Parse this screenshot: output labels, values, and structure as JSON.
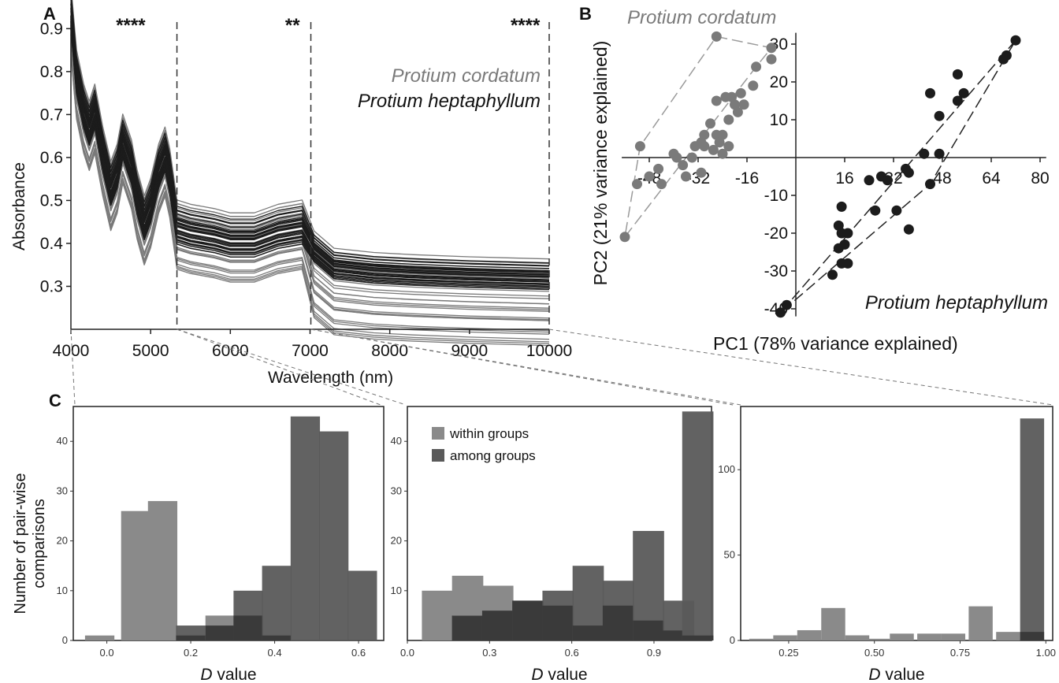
{
  "colors": {
    "cordatum": "#7a7a7a",
    "heptaphyllum": "#1c1c1c",
    "within": "#8a8a8a",
    "among": "#5a5a5a",
    "overlap": "#3a3a3a",
    "axis": "#222222"
  },
  "panel_labels": {
    "a": "A",
    "b": "B",
    "c": "C"
  },
  "chart_data": [
    {
      "id": "A",
      "type": "line",
      "xlabel": "Wavelength (nm)",
      "ylabel": "Absorbance",
      "xlim": [
        4000,
        10000
      ],
      "ylim": [
        0.2,
        0.93
      ],
      "xticks": [
        4000,
        5000,
        6000,
        7000,
        8000,
        9000,
        10000
      ],
      "yticks": [
        0.3,
        0.4,
        0.5,
        0.6,
        0.7,
        0.8,
        0.9
      ],
      "legend": [
        "Protium cordatum",
        "Protium heptaphyllum"
      ],
      "dividers": [
        5330,
        7010,
        10000
      ],
      "significance": [
        {
          "x": 4750,
          "text": "****"
        },
        {
          "x": 6780,
          "text": "**"
        },
        {
          "x": 9700,
          "text": "****"
        }
      ],
      "profile": [
        [
          4000,
          0.93
        ],
        [
          4070,
          0.78
        ],
        [
          4160,
          0.7
        ],
        [
          4230,
          0.66
        ],
        [
          4300,
          0.7
        ],
        [
          4400,
          0.6
        ],
        [
          4500,
          0.52
        ],
        [
          4580,
          0.56
        ],
        [
          4650,
          0.63
        ],
        [
          4760,
          0.57
        ],
        [
          4830,
          0.5
        ],
        [
          4920,
          0.44
        ],
        [
          5000,
          0.48
        ],
        [
          5100,
          0.56
        ],
        [
          5180,
          0.6
        ],
        [
          5240,
          0.55
        ],
        [
          5330,
          0.43
        ],
        [
          5500,
          0.42
        ],
        [
          5800,
          0.41
        ],
        [
          6000,
          0.4
        ],
        [
          6300,
          0.4
        ],
        [
          6600,
          0.42
        ],
        [
          6900,
          0.43
        ],
        [
          7050,
          0.38
        ],
        [
          7300,
          0.34
        ],
        [
          7800,
          0.33
        ],
        [
          8300,
          0.325
        ],
        [
          9000,
          0.32
        ],
        [
          10000,
          0.315
        ]
      ],
      "series": [
        {
          "name": "Protium cordatum",
          "count": 30,
          "offset_range": [
            -0.09,
            0.07
          ]
        },
        {
          "name": "Protium heptaphyllum",
          "count": 32,
          "offset_range": [
            -0.03,
            0.05
          ]
        }
      ]
    },
    {
      "id": "B",
      "type": "scatter",
      "xlabel": "PC1 (78% variance explained)",
      "ylabel": "PC2 (21% variance explained)",
      "xlim": [
        -57,
        82
      ],
      "ylim": [
        -42,
        33
      ],
      "xticks": [
        -48,
        -32,
        -16,
        16,
        32,
        48,
        64,
        80
      ],
      "yticks": [
        -40,
        -30,
        -20,
        -10,
        10,
        20,
        30
      ],
      "groups": [
        {
          "name": "Protium cordatum",
          "points": [
            [
              -26,
              32
            ],
            [
              -8,
              29
            ],
            [
              -13,
              24
            ],
            [
              -8,
              26
            ],
            [
              -14,
              19
            ],
            [
              -18,
              17
            ],
            [
              -21,
              16
            ],
            [
              -23,
              16
            ],
            [
              -20,
              14
            ],
            [
              -26,
              15
            ],
            [
              -17,
              14
            ],
            [
              -19,
              12
            ],
            [
              -22,
              10
            ],
            [
              -28,
              9
            ],
            [
              -30,
              6
            ],
            [
              -26,
              6
            ],
            [
              -24,
              6
            ],
            [
              -31,
              4
            ],
            [
              -30,
              3
            ],
            [
              -25,
              4
            ],
            [
              -27,
              2
            ],
            [
              -22,
              3
            ],
            [
              -33,
              3
            ],
            [
              -40,
              1
            ],
            [
              -39,
              0
            ],
            [
              -34,
              0
            ],
            [
              -37,
              -2
            ],
            [
              -45,
              -3
            ],
            [
              -31,
              -4
            ],
            [
              -48,
              -5
            ],
            [
              -36,
              -5
            ],
            [
              -44,
              -7
            ],
            [
              -52,
              -7
            ],
            [
              -51,
              3
            ],
            [
              -56,
              -21
            ],
            [
              -24,
              1
            ]
          ],
          "hull": [
            [
              -26,
              32
            ],
            [
              -8,
              29
            ],
            [
              -13,
              24
            ],
            [
              -56,
              -21
            ],
            [
              -51,
              3
            ]
          ]
        },
        {
          "name": "Protium heptaphyllum",
          "points": [
            [
              72,
              31
            ],
            [
              69,
              27
            ],
            [
              68,
              26
            ],
            [
              53,
              22
            ],
            [
              55,
              17
            ],
            [
              44,
              17
            ],
            [
              53,
              15
            ],
            [
              47,
              11
            ],
            [
              42,
              1
            ],
            [
              47,
              1
            ],
            [
              36,
              -3
            ],
            [
              37,
              -4
            ],
            [
              28,
              -5
            ],
            [
              30,
              -6
            ],
            [
              24,
              -6
            ],
            [
              26,
              -14
            ],
            [
              33,
              -14
            ],
            [
              15,
              -13
            ],
            [
              37,
              -19
            ],
            [
              14,
              -18
            ],
            [
              15,
              -20
            ],
            [
              17,
              -20
            ],
            [
              16,
              -23
            ],
            [
              14,
              -24
            ],
            [
              17,
              -28
            ],
            [
              15,
              -28
            ],
            [
              12,
              -31
            ],
            [
              44,
              -7
            ],
            [
              -3,
              -39
            ],
            [
              -5,
              -41
            ]
          ],
          "hull": [
            [
              72,
              31
            ],
            [
              -5,
              -41
            ],
            [
              44,
              -7
            ]
          ]
        }
      ]
    },
    {
      "id": "C1",
      "type": "bar",
      "xlabel": "D value",
      "ylabel": "Number of pair-wise comparisons",
      "bin_width": 0.07,
      "xlim": [
        -0.08,
        0.66
      ],
      "ylim": [
        0,
        47
      ],
      "xticks": [
        0.0,
        0.2,
        0.4,
        0.6
      ],
      "yticks": [
        0,
        10,
        20,
        30,
        40
      ],
      "x": [
        -0.017,
        0.069,
        0.133,
        0.2,
        0.27,
        0.337,
        0.405,
        0.473,
        0.541,
        0.609
      ],
      "series": [
        {
          "name": "within groups",
          "values": [
            1,
            26,
            28,
            1,
            5,
            5,
            1,
            0,
            0,
            0
          ]
        },
        {
          "name": "among groups",
          "values": [
            0,
            0,
            0,
            3,
            3,
            10,
            15,
            45,
            42,
            14
          ]
        }
      ]
    },
    {
      "id": "C2",
      "type": "bar",
      "xlabel": "D value",
      "ylabel": "",
      "bin_width": 0.114,
      "xlim": [
        0,
        1.11
      ],
      "ylim": [
        0,
        47
      ],
      "xticks": [
        0.0,
        0.3,
        0.6,
        0.9
      ],
      "yticks": [
        10,
        20,
        30,
        40
      ],
      "legend": [
        "within groups",
        "among groups"
      ],
      "x": [
        0.11,
        0.22,
        0.33,
        0.44,
        0.55,
        0.66,
        0.77,
        0.88,
        0.99,
        1.06
      ],
      "series": [
        {
          "name": "within groups",
          "values": [
            10,
            13,
            11,
            8,
            7,
            3,
            7,
            4,
            2,
            1
          ]
        },
        {
          "name": "among groups",
          "values": [
            0,
            5,
            6,
            8,
            10,
            15,
            12,
            22,
            8,
            46
          ]
        }
      ]
    },
    {
      "id": "C3",
      "type": "bar",
      "xlabel": "D value",
      "ylabel": "",
      "bin_width": 0.07,
      "xlim": [
        0.11,
        1.02
      ],
      "ylim": [
        0,
        137
      ],
      "xticks": [
        0.25,
        0.5,
        0.75,
        1.0
      ],
      "xtick_labels": [
        "0.25",
        "0.50",
        "0.75",
        "1.00"
      ],
      "yticks": [
        0,
        50,
        100
      ],
      "x": [
        0.17,
        0.24,
        0.31,
        0.38,
        0.45,
        0.51,
        0.58,
        0.66,
        0.73,
        0.81,
        0.89,
        0.96
      ],
      "series": [
        {
          "name": "within groups",
          "values": [
            1,
            3,
            6,
            19,
            3,
            1,
            4,
            4,
            4,
            20,
            5,
            5
          ]
        },
        {
          "name": "among groups",
          "values": [
            0,
            0,
            0,
            0,
            0,
            0,
            0,
            0,
            0,
            0,
            0,
            130
          ]
        }
      ]
    }
  ]
}
